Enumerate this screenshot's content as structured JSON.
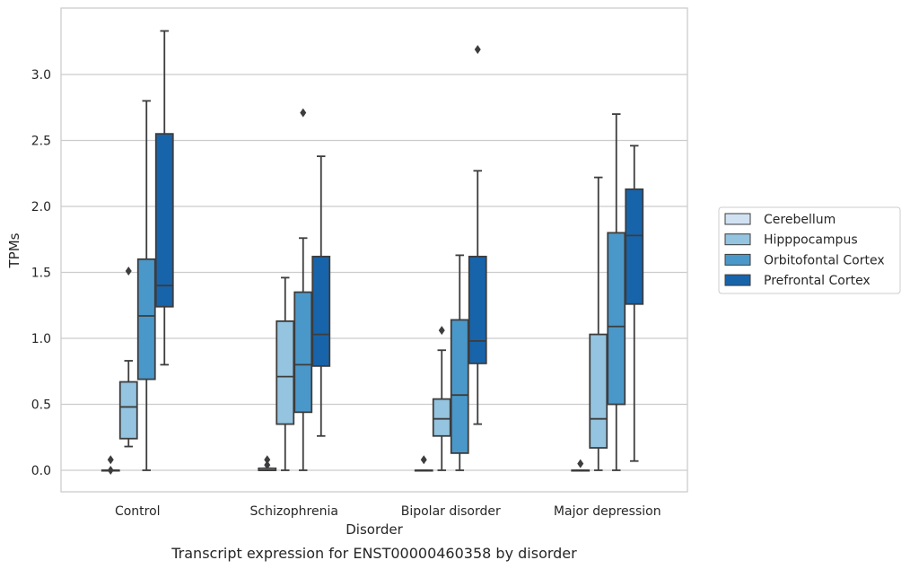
{
  "chart_data": {
    "type": "boxplot",
    "xlabel": "Disorder",
    "ylabel": "TPMs",
    "caption": "Transcript expression for ENST00000460358 by disorder",
    "ylim": [
      -0.16,
      3.5
    ],
    "yticks": [
      "0.0",
      "0.5",
      "1.0",
      "1.5",
      "2.0",
      "2.5",
      "3.0"
    ],
    "grid": "horizontal",
    "legend_position": "right",
    "categories": [
      "Control",
      "Schizophrenia",
      "Bipolar disorder",
      "Major depression"
    ],
    "series": [
      {
        "name": "Cerebellum",
        "color": "#d0e1f2",
        "boxes": [
          {
            "whislo": 0.0,
            "q1": 0.0,
            "med": 0.0,
            "q3": 0.0,
            "whishi": 0.0,
            "fliers": [
              0.08,
              0.0
            ]
          },
          {
            "whislo": 0.0,
            "q1": 0.0,
            "med": 0.0,
            "q3": 0.015,
            "whishi": 0.015,
            "fliers": [
              0.08,
              0.04
            ]
          },
          {
            "whislo": 0.0,
            "q1": 0.0,
            "med": 0.0,
            "q3": 0.0,
            "whishi": 0.0,
            "fliers": [
              0.08
            ]
          },
          {
            "whislo": 0.0,
            "q1": 0.0,
            "med": 0.0,
            "q3": 0.0,
            "whishi": 0.0,
            "fliers": [
              0.05
            ]
          }
        ]
      },
      {
        "name": "Hipppocampus",
        "color": "#94c4df",
        "boxes": [
          {
            "whislo": 0.18,
            "q1": 0.24,
            "med": 0.48,
            "q3": 0.67,
            "whishi": 0.83,
            "fliers": [
              1.51
            ]
          },
          {
            "whislo": 0.0,
            "q1": 0.35,
            "med": 0.71,
            "q3": 1.13,
            "whishi": 1.46,
            "fliers": []
          },
          {
            "whislo": 0.0,
            "q1": 0.26,
            "med": 0.39,
            "q3": 0.54,
            "whishi": 0.91,
            "fliers": [
              1.06
            ]
          },
          {
            "whislo": 0.0,
            "q1": 0.17,
            "med": 0.39,
            "q3": 1.03,
            "whishi": 2.22,
            "fliers": []
          }
        ]
      },
      {
        "name": "Orbitofontal Cortex",
        "color": "#4a98c9",
        "boxes": [
          {
            "whislo": 0.0,
            "q1": 0.69,
            "med": 1.17,
            "q3": 1.6,
            "whishi": 2.8,
            "fliers": []
          },
          {
            "whislo": 0.0,
            "q1": 0.44,
            "med": 0.8,
            "q3": 1.35,
            "whishi": 1.76,
            "fliers": [
              2.71
            ]
          },
          {
            "whislo": 0.0,
            "q1": 0.13,
            "med": 0.57,
            "q3": 1.14,
            "whishi": 1.63,
            "fliers": []
          },
          {
            "whislo": 0.0,
            "q1": 0.5,
            "med": 1.09,
            "q3": 1.8,
            "whishi": 2.7,
            "fliers": []
          }
        ]
      },
      {
        "name": "Prefrontal Cortex",
        "color": "#1764ab",
        "boxes": [
          {
            "whislo": 0.8,
            "q1": 1.24,
            "med": 1.4,
            "q3": 2.55,
            "whishi": 3.33,
            "fliers": []
          },
          {
            "whislo": 0.26,
            "q1": 0.79,
            "med": 1.03,
            "q3": 1.62,
            "whishi": 2.38,
            "fliers": []
          },
          {
            "whislo": 0.35,
            "q1": 0.81,
            "med": 0.98,
            "q3": 1.62,
            "whishi": 2.27,
            "fliers": [
              3.19
            ]
          },
          {
            "whislo": 0.07,
            "q1": 1.26,
            "med": 1.78,
            "q3": 2.13,
            "whishi": 2.46,
            "fliers": []
          }
        ]
      }
    ]
  }
}
